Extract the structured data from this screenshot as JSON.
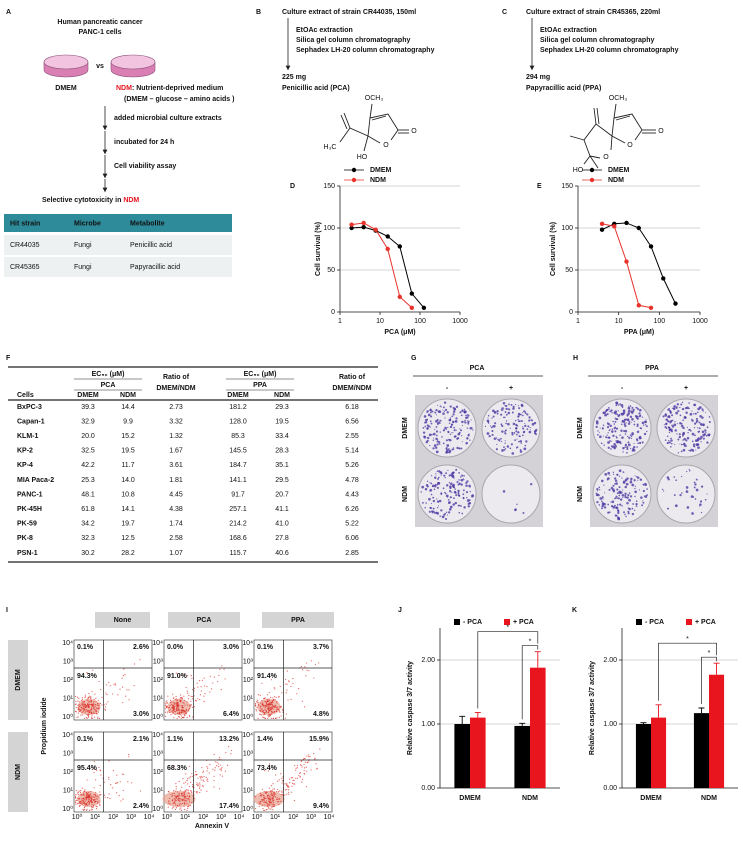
{
  "panel_labels": [
    "A",
    "B",
    "C",
    "D",
    "E",
    "F",
    "G",
    "H",
    "I",
    "J",
    "K"
  ],
  "panel_a": {
    "cells": [
      "Human pancreatic cancer",
      "PANC-1 cells"
    ],
    "vs": "vs",
    "dmem": "DMEM",
    "ndm": "NDM",
    "ndm_desc": ": Nutrient-deprived medium",
    "ndm_formula": "(DMEM – glucose – amino acids )",
    "steps": [
      "added microbial culture extracts",
      "incubated for 24 h",
      "Cell viability assay"
    ],
    "result": "Selective cytotoxicity in ",
    "result_em": "NDM",
    "table": {
      "header": [
        "Hit strain",
        "Microbe",
        "Metabolite"
      ],
      "rows": [
        [
          "CR44035",
          "Fungi",
          "Penicillic acid"
        ],
        [
          "CR45365",
          "Fungi",
          "Papyracillic acid"
        ]
      ]
    }
  },
  "panel_b": {
    "source": "Culture extract of strain CR44035, 150ml",
    "steps": [
      "EtOAc extraction",
      "Silica gel  column chromatography",
      "Sephadex LH-20 column chromatography"
    ],
    "yield": "225 mg",
    "product": "Penicillic acid (PCA)",
    "atoms": [
      "OCH₃",
      "O",
      "O",
      "HO",
      "H₃C"
    ]
  },
  "panel_c": {
    "source": "Culture extract of strain CR45365, 220ml",
    "steps": [
      "EtOAc extraction",
      "Silica gel  column chromatography",
      "Sephadex LH-20 column chromatography"
    ],
    "yield": "294 mg",
    "product": "Papyracillic acid (PPA)",
    "atoms": [
      "OCH₃",
      "O",
      "O",
      "O",
      "HO"
    ]
  },
  "panel_f": {
    "ec50": [
      "EC₅₀ (μM)",
      "EC₅₀ (μM)"
    ],
    "ratio": [
      [
        "Ratio of",
        "DMEM/NDM"
      ],
      [
        "Ratio of",
        "DMEM/NDM"
      ]
    ],
    "groups": [
      "PCA",
      "PPA"
    ],
    "columns": [
      "Cells",
      "DMEM",
      "NDM",
      "DMEM",
      "NDM"
    ],
    "rows": [
      [
        "BxPC-3",
        "39.3",
        "14.4",
        "2.73",
        "181.2",
        "29.3",
        "6.18"
      ],
      [
        "Capan-1",
        "32.9",
        "9.9",
        "3.32",
        "128.0",
        "19.5",
        "6.56"
      ],
      [
        "KLM-1",
        "20.0",
        "15.2",
        "1.32",
        "85.3",
        "33.4",
        "2.55"
      ],
      [
        "KP-2",
        "32.5",
        "19.5",
        "1.67",
        "145.5",
        "28.3",
        "5.14"
      ],
      [
        "KP-4",
        "42.2",
        "11.7",
        "3.61",
        "184.7",
        "35.1",
        "5.26"
      ],
      [
        "MIA Paca-2",
        "25.3",
        "14.0",
        "1.81",
        "141.1",
        "29.5",
        "4.78"
      ],
      [
        "PANC-1",
        "48.1",
        "10.8",
        "4.45",
        "91.7",
        "20.7",
        "4.43"
      ],
      [
        "PK-45H",
        "61.8",
        "14.1",
        "4.38",
        "257.1",
        "41.1",
        "6.26"
      ],
      [
        "PK-59",
        "34.2",
        "19.7",
        "1.74",
        "214.2",
        "41.0",
        "5.22"
      ],
      [
        "PK-8",
        "32.3",
        "12.5",
        "2.58",
        "168.6",
        "27.8",
        "6.06"
      ],
      [
        "PSN-1",
        "30.2",
        "28.2",
        "1.07",
        "115.7",
        "40.6",
        "2.85"
      ]
    ]
  },
  "panel_g": {
    "title": "PCA",
    "conditions": [
      "-",
      "+"
    ],
    "rows": [
      "DMEM",
      "NDM"
    ]
  },
  "panel_h": {
    "title": "PPA",
    "conditions": [
      "-",
      "+"
    ],
    "rows": [
      "DMEM",
      "NDM"
    ]
  },
  "panel_i": {
    "columns": [
      "None",
      "PCA",
      "PPA"
    ],
    "rows": [
      "DMEM",
      "NDM"
    ],
    "ylabel": "Propidium iodide",
    "xlabel": "Annexin V",
    "ticks": [
      "10⁰",
      "10¹",
      "10²",
      "10³",
      "10⁴"
    ],
    "quadrants": [
      [
        [
          "0.1%",
          "2.6%",
          "94.3%",
          "3.0%"
        ],
        [
          "0.0%",
          "3.0%",
          "91.0%",
          "6.4%"
        ],
        [
          "0.1%",
          "3.7%",
          "91.4%",
          "4.8%"
        ]
      ],
      [
        [
          "0.1%",
          "2.1%",
          "95.4%",
          "2.4%"
        ],
        [
          "1.1%",
          "13.2%",
          "68.3%",
          "17.4%"
        ],
        [
          "1.4%",
          "15.9%",
          "73.4%",
          "9.4%"
        ]
      ]
    ]
  },
  "chart_data": [
    {
      "type": "line",
      "x_log": true,
      "xlabel": "PCA (μM)",
      "ylabel": "Cell survival (%)",
      "xlim": [
        1,
        1000
      ],
      "ylim": [
        0,
        150
      ],
      "xticks": [
        1,
        10,
        100,
        1000
      ],
      "yticks": [
        0,
        50,
        100,
        150
      ],
      "grid": true,
      "legend": "top",
      "series": [
        {
          "name": "DMEM",
          "color": "#000000",
          "x": [
            1.95,
            3.9,
            7.8,
            15.6,
            31.25,
            62.5,
            125
          ],
          "values": [
            100,
            101,
            97,
            90,
            78,
            22,
            5
          ]
        },
        {
          "name": "NDM",
          "color": "#e8322a",
          "x": [
            1.95,
            3.9,
            7.8,
            15.6,
            31.25,
            62.5
          ],
          "values": [
            104,
            106,
            98,
            75,
            18,
            5
          ]
        }
      ]
    },
    {
      "type": "line",
      "x_log": true,
      "xlabel": "PPA (μM)",
      "ylabel": "Cell survival (%)",
      "xlim": [
        1,
        1000
      ],
      "ylim": [
        0,
        150
      ],
      "xticks": [
        1,
        10,
        100,
        1000
      ],
      "yticks": [
        0,
        50,
        100,
        150
      ],
      "grid": true,
      "legend": "top",
      "series": [
        {
          "name": "DMEM",
          "color": "#000000",
          "x": [
            3.9,
            7.8,
            15.6,
            31.25,
            62.5,
            125,
            250
          ],
          "values": [
            98,
            105,
            106,
            100,
            78,
            40,
            10
          ]
        },
        {
          "name": "NDM",
          "color": "#e8322a",
          "x": [
            3.9,
            7.8,
            15.6,
            31.25,
            62.5
          ],
          "values": [
            105,
            102,
            60,
            8,
            5
          ]
        }
      ]
    },
    {
      "type": "bar",
      "ylabel": "Relative caspase 3/7 activity",
      "categories": [
        "DMEM",
        "NDM"
      ],
      "ylim": [
        0,
        2.5
      ],
      "yticks": [
        {
          "value": 0,
          "label": "0.00"
        },
        {
          "value": 1,
          "label": "1.00"
        },
        {
          "value": 2,
          "label": "2.00"
        }
      ],
      "grid": true,
      "legend": "top",
      "annotations": [
        "*",
        "*"
      ],
      "series": [
        {
          "name": "- PCA",
          "color": "#000000",
          "values": [
            1.0,
            0.97
          ],
          "errors": [
            0.12,
            0.04
          ]
        },
        {
          "name": "+ PCA",
          "color": "#e8141e",
          "values": [
            1.1,
            1.88
          ],
          "errors": [
            0.08,
            0.25
          ]
        }
      ]
    },
    {
      "type": "bar",
      "ylabel": "Relative caspase 3/7 activity",
      "categories": [
        "DMEM",
        "NDM"
      ],
      "ylim": [
        0,
        2.5
      ],
      "yticks": [
        {
          "value": 0,
          "label": "0.00"
        },
        {
          "value": 1,
          "label": "1.00"
        },
        {
          "value": 2,
          "label": "2.00"
        }
      ],
      "grid": true,
      "legend": "top",
      "annotations": [
        "*",
        "*"
      ],
      "series": [
        {
          "name": "- PCA",
          "color": "#000000",
          "values": [
            1.0,
            1.17
          ],
          "errors": [
            0.02,
            0.08
          ]
        },
        {
          "name": "+ PCA",
          "color": "#e8141e",
          "values": [
            1.1,
            1.77
          ],
          "errors": [
            0.2,
            0.18
          ]
        }
      ]
    }
  ]
}
